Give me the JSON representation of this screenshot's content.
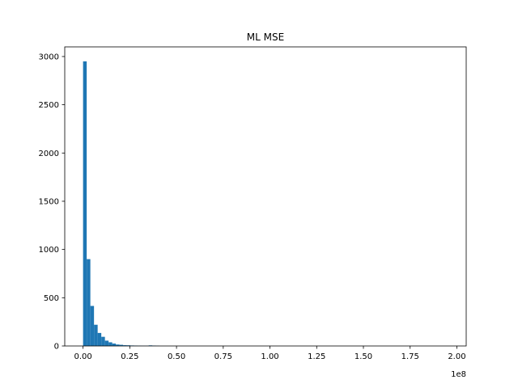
{
  "chart_data": {
    "type": "histogram",
    "title": "ML MSE",
    "xlabel": "",
    "ylabel": "",
    "x_offset_label": "1e8",
    "x_scale": 100000000,
    "xlim": [
      -0.098,
      2.05
    ],
    "ylim": [
      0,
      3100
    ],
    "x_ticks": [
      0,
      0.25,
      0.5,
      0.75,
      1.0,
      1.25,
      1.5,
      1.75,
      2.0
    ],
    "x_tick_labels": [
      "0.00",
      "0.25",
      "0.50",
      "0.75",
      "1.00",
      "1.25",
      "1.50",
      "1.75",
      "2.00"
    ],
    "y_ticks": [
      0,
      500,
      1000,
      1500,
      2000,
      2500,
      3000
    ],
    "y_tick_labels": [
      "0",
      "500",
      "1000",
      "1500",
      "2000",
      "2500",
      "3000"
    ],
    "grid": false,
    "bar_color": "#1f77b4",
    "bin_width": 0.0195,
    "bins_start": [
      0.0,
      0.0195,
      0.039,
      0.0585,
      0.078,
      0.0975,
      0.117,
      0.1365,
      0.156,
      0.1755,
      0.195,
      0.2145,
      0.234,
      0.2535,
      0.273,
      0.2925,
      0.312,
      0.3315,
      0.351,
      0.3705,
      0.39
    ],
    "counts": [
      2950,
      900,
      415,
      220,
      135,
      95,
      55,
      38,
      25,
      15,
      12,
      8,
      7,
      5,
      4,
      3,
      2,
      2,
      6,
      4,
      2
    ]
  }
}
